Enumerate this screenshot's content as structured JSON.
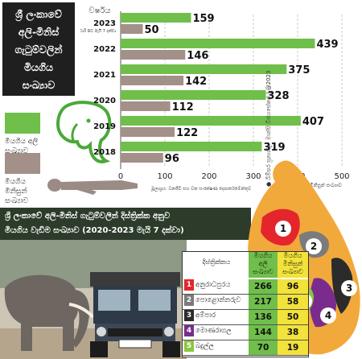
{
  "title": {
    "lines": [
      "ශ්‍රී ලංකාවේ",
      "අලි-මිනිස්",
      "ගැටුම්වලින්",
      "මියගිය",
      "සංඛ්‍යාව"
    ]
  },
  "legend": {
    "elephants": {
      "label": "මියගිය අලි සංඛ්‍යාව",
      "color": "#6fbf4a"
    },
    "humans": {
      "label": "මියගිය මිනිසුන් සංඛ්‍යාව",
      "color": "#a39089"
    }
  },
  "chart_data": [
    {
      "type": "bar",
      "orientation": "horizontal",
      "category_header": "වර්ෂය",
      "categories": [
        "2023",
        "2022",
        "2021",
        "2020",
        "2019",
        "2018"
      ],
      "category_note": "ජනවාරි සිට මැයි 7 දක්වා",
      "series": [
        {
          "name": "මියගිය අලි සංඛ්‍යාව",
          "color": "#6fbf4a",
          "values": [
            159,
            439,
            375,
            328,
            407,
            319
          ]
        },
        {
          "name": "මියගිය මිනිසුන් සංඛ්‍යාව",
          "color": "#a39089",
          "values": [
            50,
            146,
            142,
            112,
            122,
            96
          ]
        }
      ],
      "xlim": [
        0,
        500
      ],
      "xticks": [
        "0",
        "100",
        "200",
        "300",
        "400",
        "500"
      ],
      "axis_note": "මියගිය අලි සහ මිනිසුන් සංඛ්‍යාව",
      "source": "මූලාශ්‍රය: වනජීවී සහ වන සංරක්ෂණ දෙපාර්තමේන්තුව",
      "credit": "● බිම්සර ප්‍රනාන්දු · මාන්සි විජයසේකර | @2023"
    },
    {
      "type": "table",
      "title_lines": [
        "ශ්‍රී ලංකාවේ අලි-මිනිස් ගැටුම්වලින් දිස්ත්‍රික්ක අනුව",
        "මියගිය වැඩිම සංඛ්‍යාව (2020-2023 මැයි 7 දක්වා)"
      ],
      "columns": [
        "දිස්ත්‍රික්කය",
        "මියගිය අලි සංඛ්‍යාව",
        "මියගිය මිනිසුන් සංඛ්‍යාව"
      ],
      "rows": [
        {
          "rank": "1",
          "district": "අනුරාධපුරය",
          "elephants": 266,
          "humans": 96,
          "color": "#e4262c"
        },
        {
          "rank": "2",
          "district": "පොළොන්නරුව",
          "elephants": 217,
          "humans": 58,
          "color": "#7b7b7b"
        },
        {
          "rank": "3",
          "district": "අම්පාර",
          "elephants": 136,
          "humans": 50,
          "color": "#2b2b2b"
        },
        {
          "rank": "4",
          "district": "මොණරාගල",
          "elephants": 144,
          "humans": 38,
          "color": "#7a2c8e"
        },
        {
          "rank": "5",
          "district": "බදුල්ල",
          "elephants": 70,
          "humans": 19,
          "color": "#8cc63f"
        }
      ]
    }
  ]
}
